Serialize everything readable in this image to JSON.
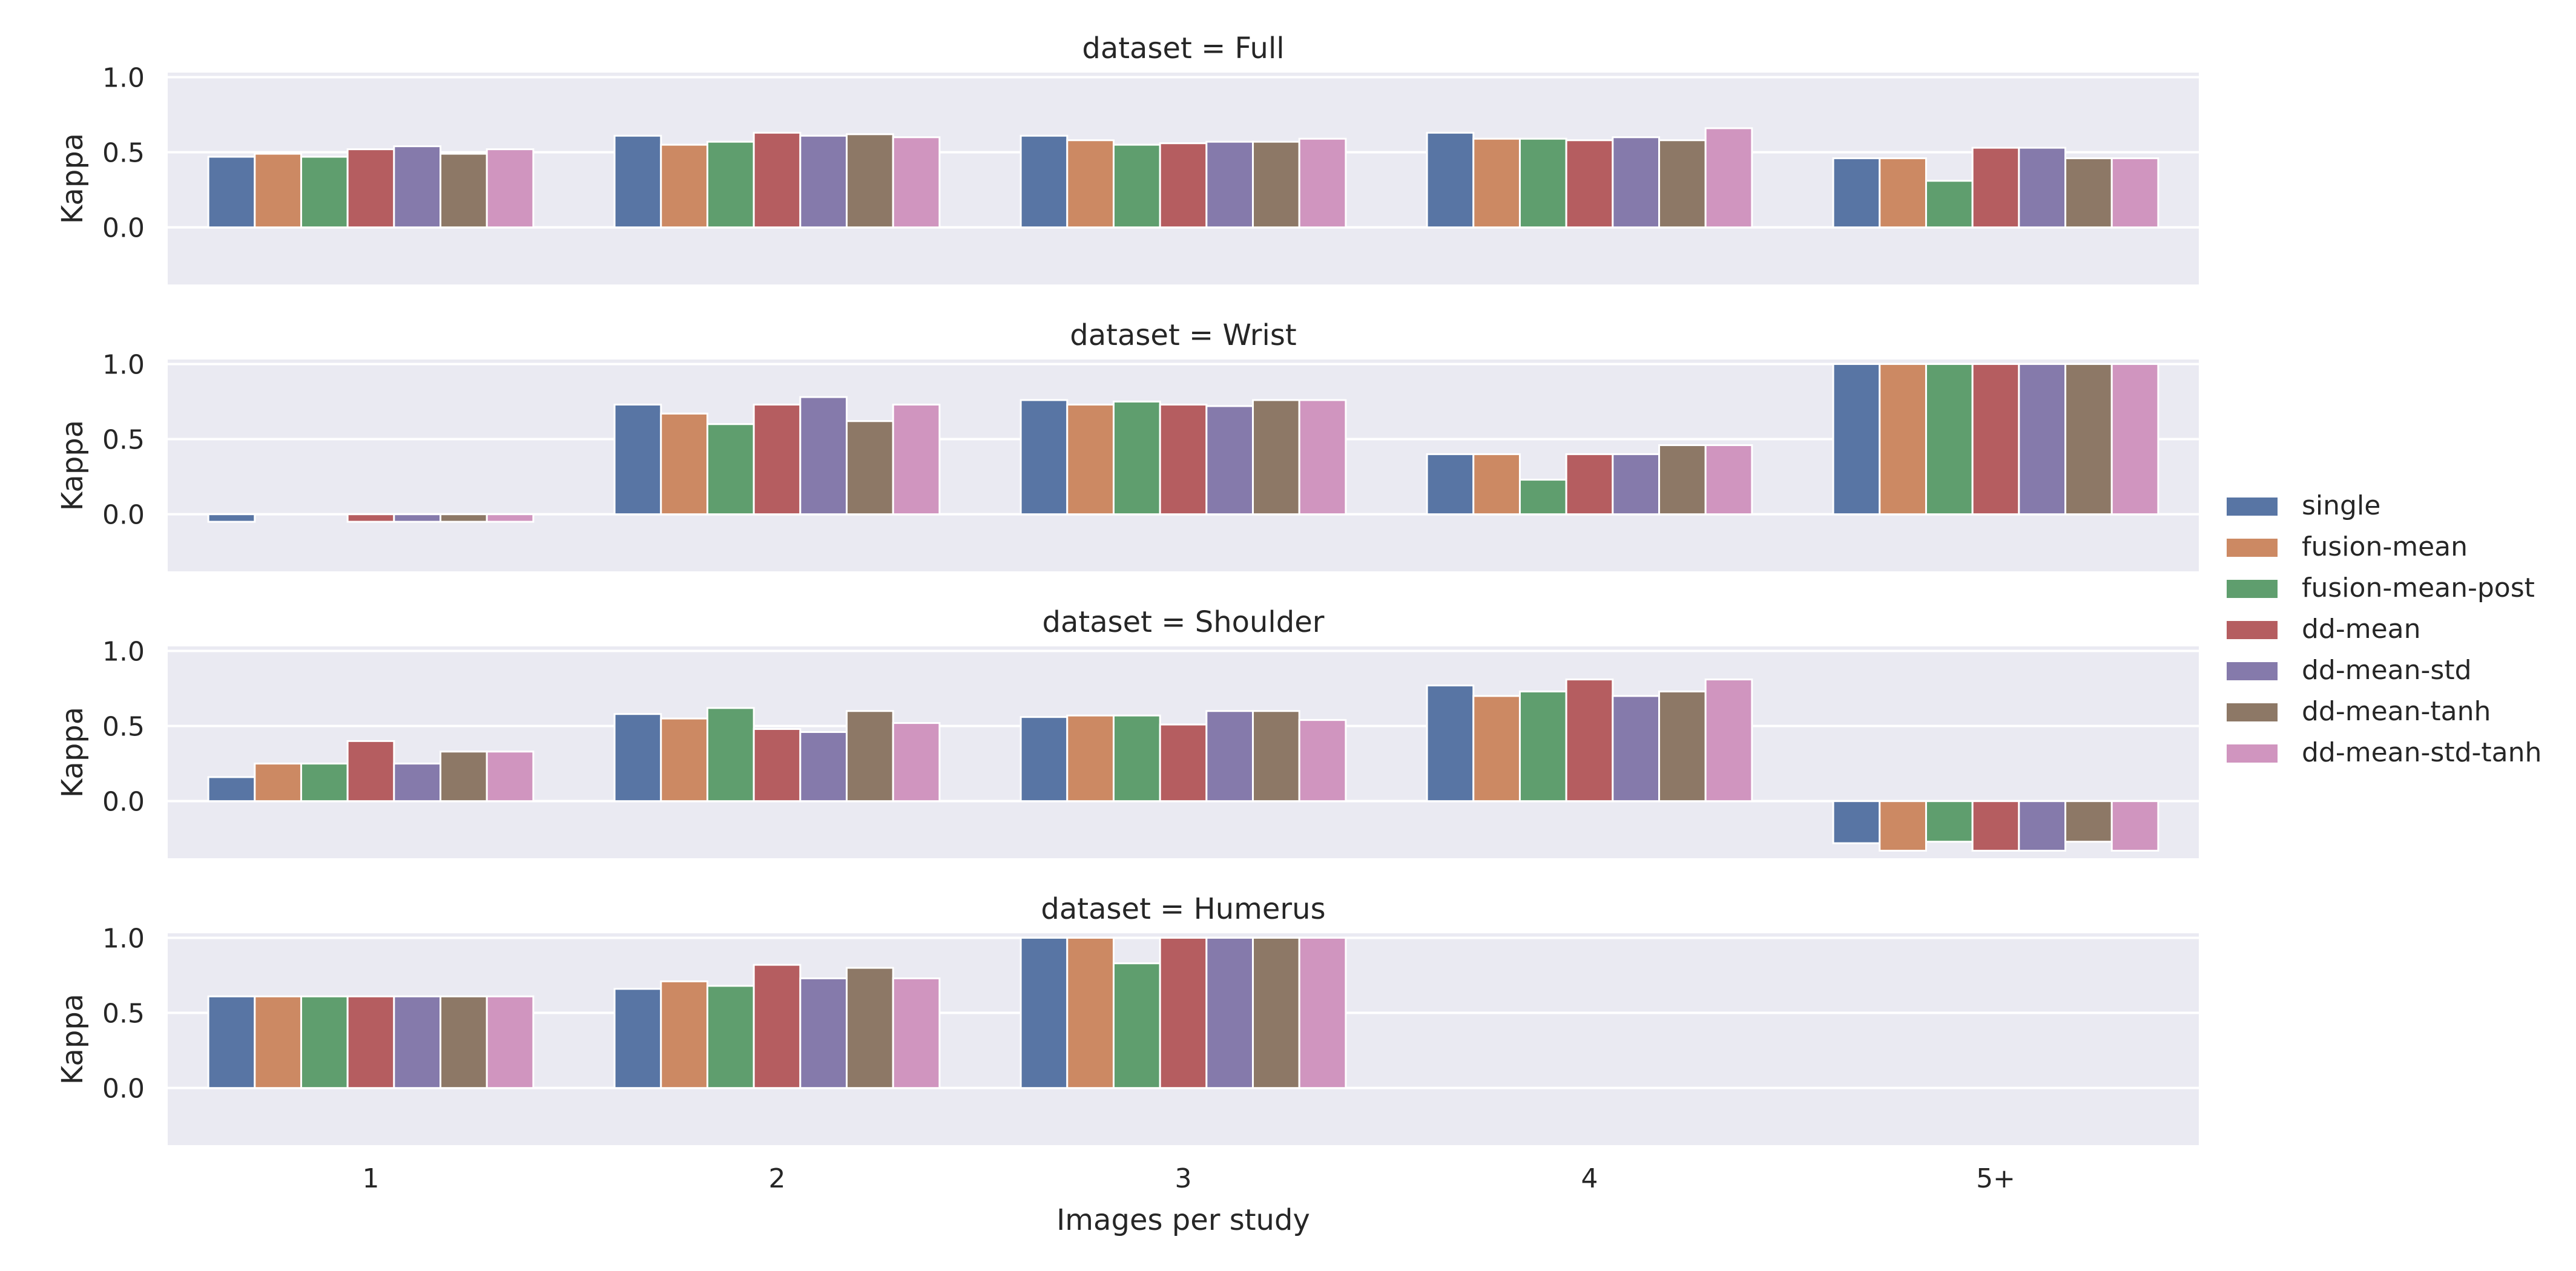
{
  "chart_data": {
    "type": "bar",
    "xlabel": "Images per study",
    "ylabel": "Kappa",
    "ylim": [
      -0.38,
      1.03
    ],
    "yticks": [
      "0.0",
      "0.5",
      "1.0"
    ],
    "grid": true,
    "legend_position": "right",
    "categories": [
      "1",
      "2",
      "3",
      "4",
      "5+"
    ],
    "series_names": [
      "single",
      "fusion-mean",
      "fusion-mean-post",
      "dd-mean",
      "dd-mean-std",
      "dd-mean-tanh",
      "dd-mean-std-tanh"
    ],
    "colors": [
      "#5875a4",
      "#cc8963",
      "#5f9e6e",
      "#b55d60",
      "#857aab",
      "#8d7866",
      "#d095bf"
    ],
    "panels": [
      {
        "title": "dataset = Full",
        "values": [
          [
            0.47,
            0.49,
            0.47,
            0.52,
            0.54,
            0.49,
            0.52
          ],
          [
            0.61,
            0.55,
            0.57,
            0.63,
            0.61,
            0.62,
            0.6
          ],
          [
            0.61,
            0.58,
            0.55,
            0.56,
            0.57,
            0.57,
            0.59
          ],
          [
            0.63,
            0.59,
            0.59,
            0.58,
            0.6,
            0.58,
            0.66
          ],
          [
            0.46,
            0.46,
            0.31,
            0.53,
            0.53,
            0.46,
            0.46
          ]
        ]
      },
      {
        "title": "dataset = Wrist",
        "values": [
          [
            -0.05,
            0.0,
            0.0,
            -0.05,
            -0.05,
            -0.05,
            -0.05
          ],
          [
            0.73,
            0.67,
            0.6,
            0.73,
            0.78,
            0.62,
            0.73
          ],
          [
            0.76,
            0.73,
            0.75,
            0.73,
            0.72,
            0.76,
            0.76
          ],
          [
            0.4,
            0.4,
            0.23,
            0.4,
            0.4,
            0.46,
            0.46
          ],
          [
            1.0,
            1.0,
            1.0,
            1.0,
            1.0,
            1.0,
            1.0
          ]
        ]
      },
      {
        "title": "dataset = Shoulder",
        "values": [
          [
            0.16,
            0.25,
            0.25,
            0.4,
            0.25,
            0.33,
            0.33
          ],
          [
            0.58,
            0.55,
            0.62,
            0.48,
            0.46,
            0.6,
            0.52
          ],
          [
            0.56,
            0.57,
            0.57,
            0.51,
            0.6,
            0.6,
            0.54
          ],
          [
            0.77,
            0.7,
            0.73,
            0.81,
            0.7,
            0.73,
            0.81
          ],
          [
            -0.28,
            -0.33,
            -0.27,
            -0.33,
            -0.33,
            -0.27,
            -0.33
          ]
        ]
      },
      {
        "title": "dataset = Humerus",
        "values": [
          [
            0.61,
            0.61,
            0.61,
            0.61,
            0.61,
            0.61,
            0.61
          ],
          [
            0.66,
            0.71,
            0.68,
            0.82,
            0.73,
            0.8,
            0.73
          ],
          [
            1.0,
            1.0,
            0.83,
            1.0,
            1.0,
            1.0,
            1.0
          ],
          [],
          []
        ]
      }
    ]
  }
}
